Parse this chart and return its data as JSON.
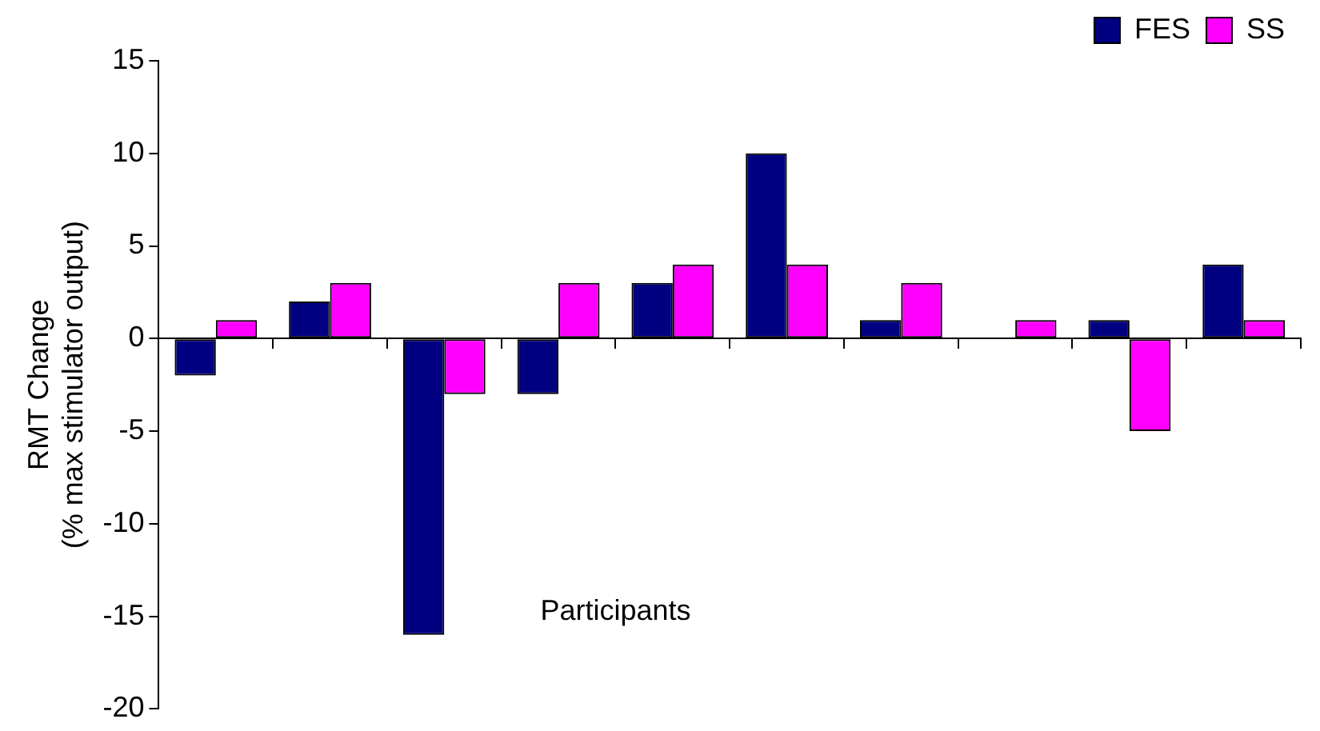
{
  "chart_data": {
    "type": "bar",
    "xlabel": "Participants",
    "ylabel": "RMT Change\n(% max stimulator output)",
    "categories": [
      null,
      null,
      null,
      null,
      null,
      null,
      null,
      null,
      null,
      null
    ],
    "series": [
      {
        "name": "FES",
        "color": "#000080",
        "values": [
          -2,
          2,
          -16,
          -3,
          3,
          10,
          1,
          0,
          1,
          4
        ]
      },
      {
        "name": "SS",
        "color": "#ff00ff",
        "values": [
          1,
          3,
          -3,
          3,
          4,
          4,
          3,
          1,
          -5,
          1
        ]
      }
    ],
    "ylim": [
      -20,
      15
    ],
    "yticks": [
      -20,
      -15,
      -10,
      -5,
      0,
      5,
      10,
      15
    ],
    "legend": "top right",
    "tick_labels": "y"
  }
}
